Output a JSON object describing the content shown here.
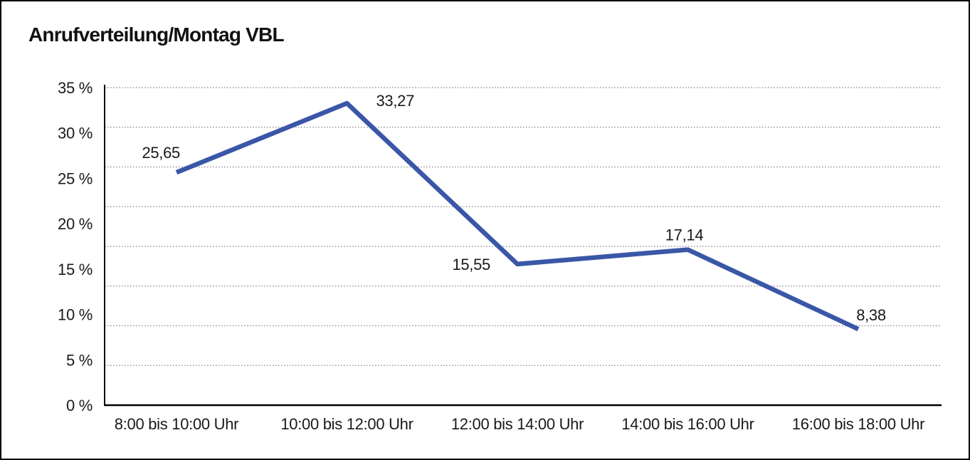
{
  "window": {
    "background_color": "#ffffff",
    "border_color": "#000000"
  },
  "chart_data": {
    "type": "line",
    "title": "Anrufverteilung/Montag VBL",
    "categories": [
      "8:00 bis 10:00 Uhr",
      "10:00 bis 12:00 Uhr",
      "12:00 bis 14:00 Uhr",
      "14:00 bis 16:00 Uhr",
      "16:00 bis 18:00 Uhr"
    ],
    "values": [
      25.65,
      33.27,
      15.55,
      17.14,
      8.38
    ],
    "value_labels": [
      "25,65",
      "33,27",
      "15,55",
      "17,14",
      "8,38"
    ],
    "y_tick_labels": [
      "0 %",
      "5 %",
      "10 %",
      "15 %",
      "20 %",
      "25 %",
      "30 %",
      "35 %"
    ],
    "y_tick_values": [
      0,
      5,
      10,
      15,
      20,
      25,
      30,
      35
    ],
    "ylim": [
      0,
      35
    ],
    "xlabel": "",
    "ylabel": "",
    "legend": "none",
    "grid": "horizontal-dotted",
    "line_color": "#3A57A7",
    "grid_color": "#8c8c8c",
    "axis_color": "#000000",
    "text_color": "#1a1a1a"
  }
}
